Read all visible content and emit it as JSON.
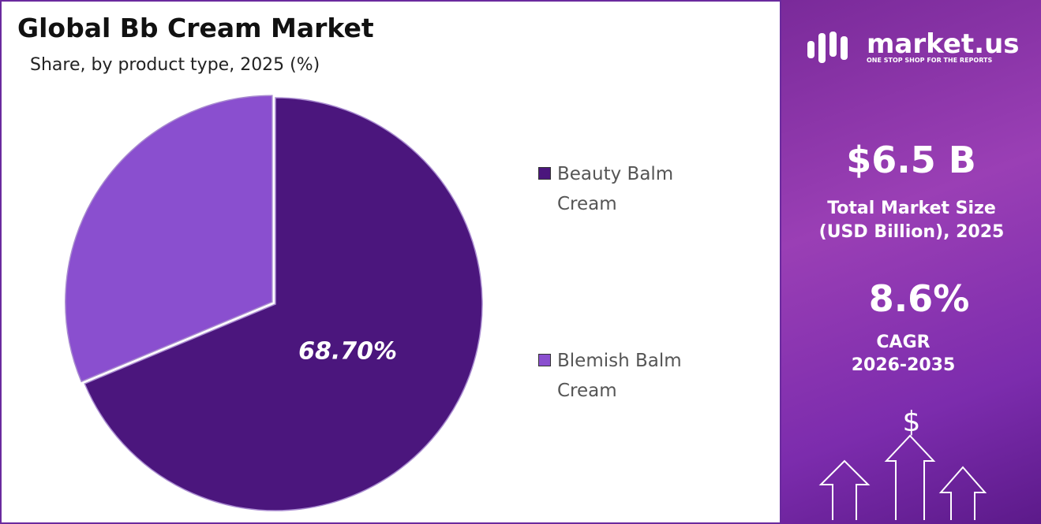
{
  "chart_data": {
    "type": "pie",
    "title": "Global Bb Cream Market",
    "subtitle": "Share, by product type, 2025 (%)",
    "categories": [
      "Beauty Balm Cream",
      "Blemish Balm Cream"
    ],
    "values": [
      68.7,
      31.3
    ],
    "value_labels": [
      "68.70%",
      null
    ],
    "colors": [
      "#4b167d",
      "#8a4fcf"
    ],
    "legend": "right"
  },
  "side_panel": {
    "brand": "market.us",
    "tagline": "ONE STOP SHOP FOR THE REPORTS",
    "market_size": "$6.5 B",
    "market_size_label": "Total Market Size (USD Billion), 2025",
    "cagr": "8.6%",
    "cagr_label": "CAGR",
    "cagr_period": "2026-2035"
  }
}
